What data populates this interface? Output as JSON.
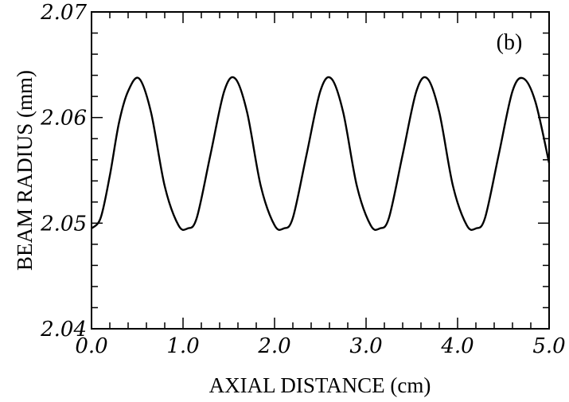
{
  "chart_data": {
    "type": "line",
    "panel_label": "(b)",
    "xlabel": "AXIAL DISTANCE (cm)",
    "ylabel": "BEAM RADIUS (mm)",
    "xlim": [
      0.0,
      5.0
    ],
    "ylim": [
      2.04,
      2.07
    ],
    "x_ticks": [
      0.0,
      1.0,
      2.0,
      3.0,
      4.0,
      5.0
    ],
    "x_tick_labels": [
      "0.0",
      "1.0",
      "2.0",
      "3.0",
      "4.0",
      "5.0"
    ],
    "y_ticks": [
      2.04,
      2.05,
      2.06,
      2.07
    ],
    "y_tick_labels": [
      "2.04",
      "2.05",
      "2.06",
      "2.07"
    ],
    "grid": false,
    "series": [
      {
        "x": [
          0.0,
          0.1,
          0.2,
          0.3,
          0.4,
          0.52,
          0.65,
          0.8,
          0.95,
          1.05,
          1.15,
          1.3,
          1.45,
          1.57,
          1.7,
          1.85,
          2.0,
          2.1,
          2.2,
          2.35,
          2.5,
          2.62,
          2.75,
          2.9,
          3.05,
          3.15,
          3.25,
          3.4,
          3.55,
          3.67,
          3.8,
          3.95,
          4.1,
          4.2,
          4.3,
          4.45,
          4.6,
          4.72,
          4.85,
          5.0
        ],
        "y": [
          2.0495,
          2.0505,
          2.0545,
          2.0595,
          2.0625,
          2.0637,
          2.0605,
          2.0535,
          2.0498,
          2.0495,
          2.0505,
          2.0565,
          2.0625,
          2.0637,
          2.0605,
          2.0535,
          2.0498,
          2.0495,
          2.0505,
          2.0565,
          2.0625,
          2.0637,
          2.0605,
          2.0535,
          2.0498,
          2.0495,
          2.0505,
          2.0565,
          2.0625,
          2.0637,
          2.0605,
          2.0535,
          2.0498,
          2.0495,
          2.0505,
          2.0565,
          2.0625,
          2.0637,
          2.0615,
          2.0557
        ]
      }
    ]
  }
}
